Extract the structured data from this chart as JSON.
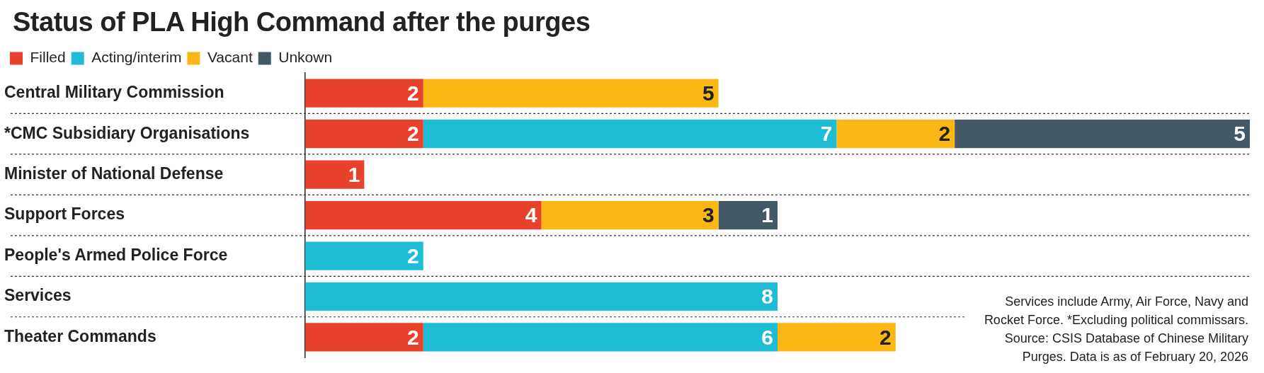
{
  "chart_data": {
    "type": "bar",
    "orientation": "horizontal",
    "stacked": true,
    "title": "Status of PLA High Command after the purges",
    "categories": [
      "Central Military Commission",
      "*CMC Subsidiary Organisations",
      "Minister of National Defense",
      "Support Forces",
      "People's Armed Police Force",
      "Services",
      "Theater Commands"
    ],
    "series": [
      {
        "name": "Filled",
        "color": "#e8412c",
        "values": [
          2,
          2,
          1,
          4,
          null,
          null,
          2
        ]
      },
      {
        "name": "Acting/interim",
        "color": "#1fbcd6",
        "values": [
          null,
          7,
          null,
          null,
          2,
          8,
          6
        ]
      },
      {
        "name": "Vacant",
        "color": "#fbb714",
        "values": [
          5,
          2,
          null,
          3,
          null,
          null,
          2
        ]
      },
      {
        "name": "Unkown",
        "color": "#435a66",
        "values": [
          null,
          5,
          null,
          1,
          null,
          null,
          null
        ]
      }
    ],
    "data_labels": true,
    "legend": "top left",
    "grid": "y",
    "annotations": [
      "Services include Army, Air Force, Navy and Rocket Force. *Excluding political commissars.",
      "Source: CSIS Database of Chinese Military Purges. Data is as of February 20, 2026"
    ]
  }
}
